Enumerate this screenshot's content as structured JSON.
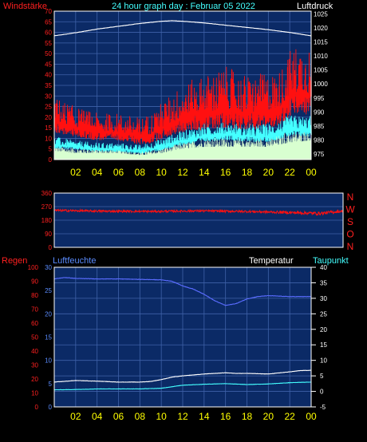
{
  "colors": {
    "bg": "#000000",
    "plot_bg": "#0b2a66",
    "grid": "#3f61a8",
    "frame": "#ffffff",
    "yellow": "#ffff00",
    "red": "#ff1010",
    "cyan": "#44ffff",
    "blue": "#5a6cff",
    "white": "#ffffff",
    "lightgreen": "#d8ffd0"
  },
  "chart_data": [
    {
      "type": "line",
      "title": "24 hour graph day : Februar 05 2022",
      "label_left": "Windstärke",
      "label_right": "Luftdruck",
      "x_ticks": [
        "02",
        "04",
        "06",
        "08",
        "10",
        "12",
        "14",
        "16",
        "18",
        "20",
        "22",
        "00"
      ],
      "y_left_ticks": [
        0,
        5,
        10,
        15,
        20,
        25,
        30,
        35,
        40,
        45,
        50,
        55,
        60,
        65,
        70
      ],
      "ylim_left": [
        0,
        70
      ],
      "y_right_ticks": [
        975,
        980,
        985,
        990,
        995,
        1000,
        1005,
        1010,
        1015,
        1020,
        1025
      ],
      "ylim_right": [
        973,
        1026
      ],
      "series": [
        {
          "color": "white",
          "axis": "right",
          "x": [
            0,
            2,
            4,
            6,
            8,
            10,
            11,
            12,
            14,
            16,
            18,
            20,
            22,
            24
          ],
          "y": [
            1017.2,
            1018.3,
            1019.6,
            1020.6,
            1021.6,
            1022.4,
            1022.6,
            1022.4,
            1021.8,
            1021.0,
            1020.2,
            1019.4,
            1018.4,
            1017.2
          ]
        },
        {
          "color": "red",
          "axis": "left",
          "kind": "noise",
          "x": [
            0,
            2,
            4,
            6,
            8,
            9,
            10,
            12,
            14,
            16,
            18,
            20,
            21,
            22,
            23,
            24
          ],
          "y": [
            18,
            15,
            13,
            13,
            11,
            12,
            15,
            20,
            22,
            24,
            22,
            23,
            24,
            30,
            32,
            31
          ],
          "amp": [
            12,
            10,
            9,
            9,
            9,
            10,
            12,
            16,
            18,
            20,
            18,
            18,
            18,
            22,
            24,
            24
          ]
        },
        {
          "color": "cyan",
          "axis": "left",
          "kind": "noise",
          "x": [
            0,
            2,
            4,
            6,
            8,
            10,
            12,
            14,
            16,
            18,
            20,
            22,
            24
          ],
          "y": [
            7,
            6,
            5,
            5,
            4,
            6,
            9,
            11,
            12,
            11,
            11,
            14,
            14
          ],
          "amp": [
            4,
            3,
            3,
            3,
            3,
            4,
            5,
            6,
            6,
            6,
            6,
            7,
            7
          ]
        },
        {
          "color": "lightgreen",
          "axis": "left",
          "kind": "fill",
          "x": [
            0,
            2,
            4,
            6,
            8,
            10,
            12,
            14,
            16,
            18,
            20,
            22,
            24
          ],
          "y": [
            4,
            3,
            3,
            3,
            2,
            3,
            5,
            6,
            6,
            6,
            6,
            8,
            9
          ],
          "amp": [
            3,
            3,
            3,
            3,
            2,
            3,
            4,
            5,
            5,
            5,
            5,
            6,
            6
          ]
        }
      ]
    },
    {
      "type": "line",
      "label_right_letters": [
        "N",
        "W",
        "S",
        "O",
        "N"
      ],
      "y_left_ticks": [
        0,
        90,
        180,
        270,
        360
      ],
      "ylim": [
        0,
        360
      ],
      "series": [
        {
          "color": "red",
          "kind": "noise",
          "x": [
            0,
            4,
            8,
            12,
            16,
            20,
            22,
            24
          ],
          "y": [
            245,
            240,
            238,
            242,
            238,
            230,
            225,
            240
          ],
          "amp": [
            14,
            14,
            14,
            14,
            14,
            18,
            22,
            16
          ]
        }
      ]
    },
    {
      "type": "line",
      "label_left": "Regen",
      "label_humidity": "Luftfeuchte",
      "label_temperature": "Temperatur",
      "label_dewpoint": "Taupunkt",
      "x_ticks": [
        "02",
        "04",
        "06",
        "08",
        "10",
        "12",
        "14",
        "16",
        "18",
        "20",
        "22",
        "00"
      ],
      "y_rain_ticks": [
        0,
        10,
        20,
        30,
        40,
        50,
        60,
        70,
        80,
        90,
        100
      ],
      "ylim_rain": [
        0,
        100
      ],
      "y_hum_ticks": [
        0,
        5,
        10,
        15,
        20,
        25,
        30
      ],
      "ylim_hum": [
        0,
        30
      ],
      "y_temp_ticks": [
        -5,
        0,
        5,
        10,
        15,
        20,
        25,
        30,
        35,
        40
      ],
      "ylim_temp": [
        -5,
        40
      ],
      "series": [
        {
          "color": "blue",
          "axis": "hum",
          "x": [
            0,
            1,
            2,
            4,
            6,
            8,
            10,
            11,
            12,
            13,
            14,
            15,
            16,
            17,
            18,
            19,
            20,
            22,
            24
          ],
          "y": [
            27.5,
            27.8,
            27.6,
            27.5,
            27.5,
            27.4,
            27.3,
            27.0,
            26.0,
            25.3,
            24.2,
            22.8,
            21.8,
            22.2,
            23.2,
            23.7,
            23.9,
            23.7,
            23.7
          ]
        },
        {
          "color": "white",
          "axis": "temp",
          "x": [
            0,
            2,
            4,
            6,
            8,
            9,
            10,
            11,
            12,
            14,
            16,
            17,
            18,
            20,
            22,
            23,
            24
          ],
          "y": [
            3.0,
            3.5,
            3.3,
            3.0,
            3.0,
            3.2,
            3.8,
            4.6,
            5.0,
            5.6,
            6.0,
            5.8,
            5.8,
            5.6,
            6.3,
            6.7,
            6.8
          ]
        },
        {
          "color": "cyan",
          "axis": "temp",
          "x": [
            0,
            2,
            4,
            6,
            8,
            10,
            12,
            14,
            16,
            18,
            20,
            22,
            24
          ],
          "y": [
            0.5,
            0.6,
            0.8,
            0.8,
            0.8,
            1.0,
            2.0,
            2.3,
            2.5,
            2.2,
            2.4,
            2.8,
            3.0
          ]
        }
      ]
    }
  ]
}
